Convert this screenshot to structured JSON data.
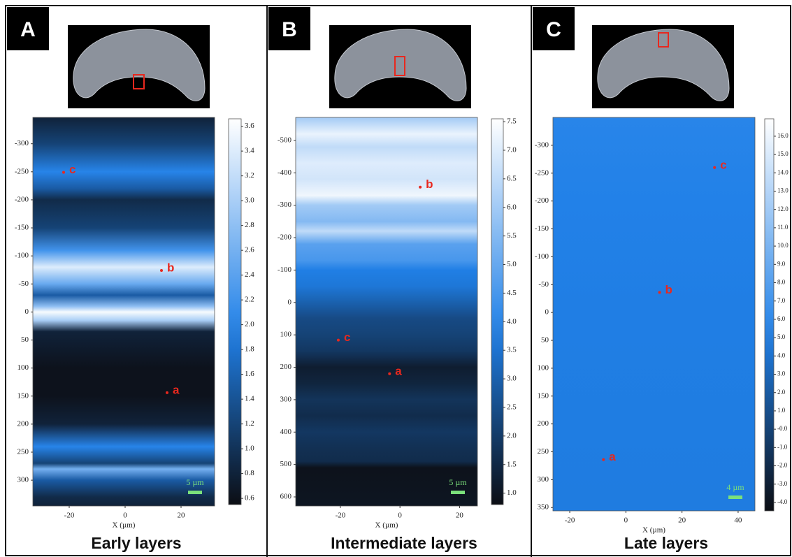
{
  "chart_data": [
    {
      "type": "heatmap",
      "panel_label": "A",
      "caption": "Early layers",
      "x_label": "X (µm)",
      "scale_bar": "5 µm",
      "xlim": [
        -33,
        32
      ],
      "xticks": [
        -20,
        0,
        20
      ],
      "ylim": [
        -347,
        346
      ],
      "yticks": [
        -300,
        -250,
        -200,
        -150,
        -100,
        -50,
        0,
        50,
        100,
        150,
        200,
        250,
        300
      ],
      "clim": [
        0.55,
        3.66
      ],
      "cticks": [
        0.6,
        0.8,
        {
          "value": 1.0,
          "label": "1.0"
        },
        1.2,
        1.4,
        1.6,
        1.8,
        {
          "value": 2.0,
          "label": "2.0"
        },
        2.2,
        2.4,
        2.6,
        2.8,
        {
          "value": 3.0,
          "label": "3.0"
        },
        3.2,
        3.4,
        3.6
      ],
      "profile": {
        "y": [
          -347,
          -300,
          -250,
          -220,
          -200,
          -150,
          -110,
          -80,
          -50,
          -30,
          -10,
          0,
          15,
          35,
          100,
          150,
          200,
          240,
          270,
          280,
          300,
          330,
          346
        ],
        "values": [
          0.8,
          1.2,
          2.0,
          1.5,
          0.9,
          1.2,
          2.2,
          3.4,
          2.5,
          1.5,
          2.8,
          3.6,
          3.0,
          0.8,
          0.6,
          0.6,
          0.8,
          2.0,
          1.2,
          2.6,
          1.5,
          0.9,
          0.8
        ]
      },
      "annotations": [
        {
          "label": "c",
          "x": -22,
          "y": -249
        },
        {
          "label": "b",
          "x": 13,
          "y": -74
        },
        {
          "label": "a",
          "x": 15,
          "y": 144
        }
      ]
    },
    {
      "type": "heatmap",
      "panel_label": "B",
      "caption": "Intermediate layers",
      "x_label": "X (µm)",
      "scale_bar": "5 µm",
      "xlim": [
        -35,
        26
      ],
      "xticks": [
        -20,
        0,
        20
      ],
      "ylim": [
        -571,
        628
      ],
      "yticks": [
        -500,
        -400,
        -300,
        -200,
        -100,
        0,
        100,
        200,
        300,
        400,
        500,
        600
      ],
      "clim": [
        0.8,
        7.55
      ],
      "cticks": [
        {
          "value": 1.0,
          "label": "1.0"
        },
        1.5,
        {
          "value": 2.0,
          "label": "2.0"
        },
        2.5,
        {
          "value": 3.0,
          "label": "3.0"
        },
        3.5,
        {
          "value": 4.0,
          "label": "4.0"
        },
        4.5,
        {
          "value": 5.0,
          "label": "5.0"
        },
        5.5,
        {
          "value": 6.0,
          "label": "6.0"
        },
        6.5,
        {
          "value": 7.0,
          "label": "7.0"
        },
        7.5
      ],
      "profile": {
        "y": [
          -571,
          -520,
          -480,
          -430,
          -380,
          -330,
          -300,
          -250,
          -220,
          -180,
          -130,
          -100,
          -50,
          0,
          50,
          100,
          150,
          200,
          250,
          300,
          350,
          400,
          450,
          490,
          510,
          628
        ],
        "values": [
          6.0,
          7.2,
          6.5,
          7.0,
          6.8,
          7.3,
          6.0,
          5.5,
          6.5,
          4.8,
          4.5,
          3.8,
          3.6,
          3.0,
          2.4,
          2.2,
          1.9,
          1.2,
          1.4,
          1.8,
          1.6,
          1.9,
          1.7,
          1.6,
          0.9,
          1.0
        ]
      },
      "annotations": [
        {
          "label": "b",
          "x": 6.8,
          "y": -356
        },
        {
          "label": "c",
          "x": -20.7,
          "y": 116
        },
        {
          "label": "a",
          "x": -3.5,
          "y": 220
        }
      ]
    },
    {
      "type": "heatmap",
      "panel_label": "C",
      "caption": "Late layers",
      "x_label": "X (µm)",
      "scale_bar": "4 µm",
      "xlim": [
        -26,
        46
      ],
      "xticks": [
        -20,
        0,
        20,
        40
      ],
      "ylim": [
        -350,
        356
      ],
      "yticks": [
        -300,
        -250,
        -200,
        -150,
        -100,
        -50,
        0,
        50,
        100,
        150,
        200,
        250,
        300,
        350
      ],
      "clim": [
        -4.46,
        16.95
      ],
      "cticks": [
        {
          "value": -4.0,
          "label": "-4.0"
        },
        {
          "value": -3.0,
          "label": "-3.0"
        },
        {
          "value": -2.0,
          "label": "-2.0"
        },
        {
          "value": -1.0,
          "label": "-1.0"
        },
        {
          "value": 0.0,
          "label": "-0.0"
        },
        {
          "value": 1.0,
          "label": "1.0"
        },
        {
          "value": 2.0,
          "label": "2.0"
        },
        {
          "value": 3.0,
          "label": "3.0"
        },
        {
          "value": 4.0,
          "label": "4.0"
        },
        {
          "value": 5.0,
          "label": "5.0"
        },
        {
          "value": 6.0,
          "label": "6.0"
        },
        {
          "value": 7.0,
          "label": "7.0"
        },
        {
          "value": 8.0,
          "label": "8.0"
        },
        {
          "value": 9.0,
          "label": "9.0"
        },
        {
          "value": 10.0,
          "label": "10.0"
        },
        {
          "value": 11.0,
          "label": "11.0"
        },
        {
          "value": 12.0,
          "label": "12.0"
        },
        {
          "value": 13.0,
          "label": "13.0"
        },
        {
          "value": 14.0,
          "label": "14.0"
        },
        {
          "value": 15.0,
          "label": "15.0"
        },
        {
          "value": 16.0,
          "label": "16.0"
        }
      ],
      "profile": {
        "y": [
          -350,
          -200,
          0,
          200,
          356
        ],
        "values": [
          5.6,
          5.3,
          5.0,
          4.9,
          4.8
        ]
      },
      "annotations": [
        {
          "label": "c",
          "x": 31.6,
          "y": -260
        },
        {
          "label": "b",
          "x": 12,
          "y": -36
        },
        {
          "label": "a",
          "x": -8,
          "y": 264
        }
      ]
    }
  ]
}
